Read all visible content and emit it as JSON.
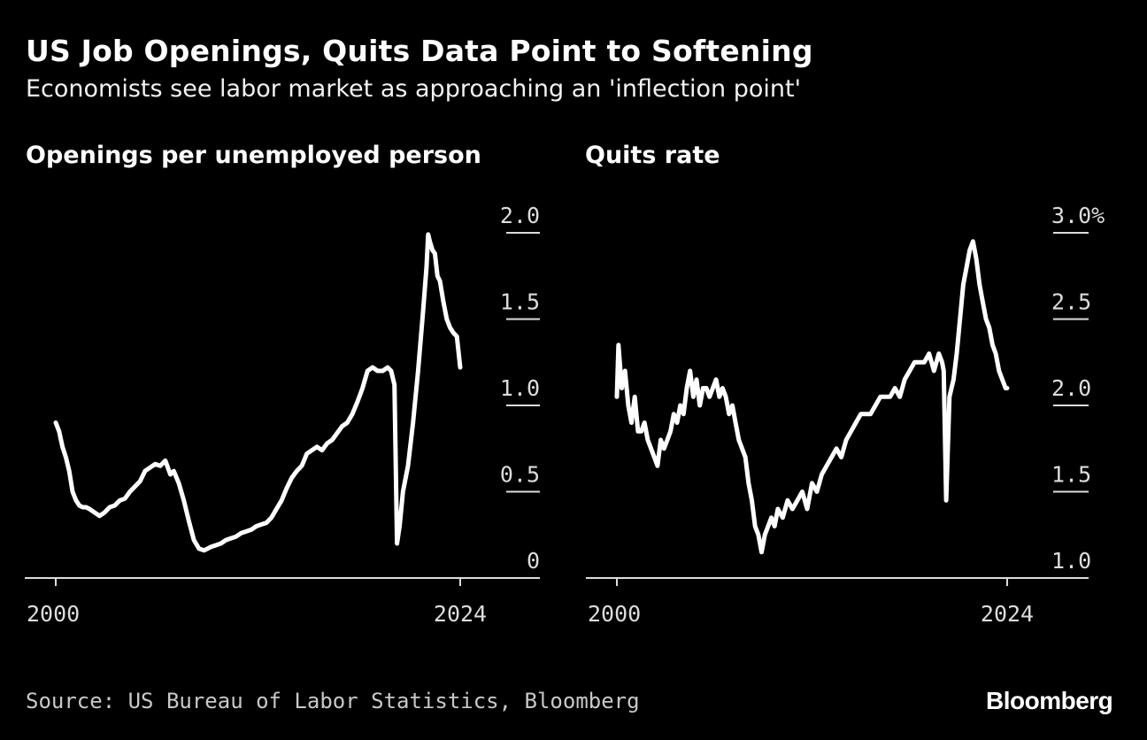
{
  "title": "US Job Openings, Quits Data Point to Softening",
  "subtitle": "Economists see labor market as approaching an 'inflection point'",
  "source": "Source: US Bureau of Labor Statistics, Bloomberg",
  "brand": "Bloomberg",
  "chart_data": [
    {
      "type": "line",
      "title": "Openings per unemployed person",
      "xlabel": "",
      "ylabel": "",
      "xlim": [
        2000,
        2024
      ],
      "ylim": [
        0,
        2.0
      ],
      "x_ticks": [
        "2000",
        "2024"
      ],
      "y_ticks": [
        "0",
        "0.5",
        "1.0",
        "1.5",
        "2.0"
      ],
      "y_tick_values": [
        0,
        0.5,
        1.0,
        1.5,
        2.0
      ],
      "grid": false,
      "color": "#ffffff",
      "series": [
        {
          "x": [
            2000.0,
            2000.2,
            2000.4,
            2000.6,
            2000.8,
            2001.0,
            2001.2,
            2001.4,
            2001.6,
            2001.8,
            2002.0,
            2002.3,
            2002.6,
            2002.9,
            2003.2,
            2003.5,
            2003.8,
            2004.1,
            2004.4,
            2004.7,
            2005.0,
            2005.3,
            2005.6,
            2005.9,
            2006.2,
            2006.5,
            2006.8,
            2007.0,
            2007.3,
            2007.6,
            2007.9,
            2008.2,
            2008.5,
            2008.8,
            2009.0,
            2009.2,
            2009.5,
            2009.8,
            2010.1,
            2010.4,
            2010.7,
            2011.0,
            2011.3,
            2011.6,
            2011.9,
            2012.2,
            2012.5,
            2012.8,
            2013.1,
            2013.4,
            2013.7,
            2014.0,
            2014.3,
            2014.6,
            2014.9,
            2015.2,
            2015.5,
            2015.8,
            2016.1,
            2016.4,
            2016.7,
            2017.0,
            2017.3,
            2017.6,
            2017.9,
            2018.2,
            2018.5,
            2018.8,
            2019.1,
            2019.4,
            2019.7,
            2019.9,
            2020.1,
            2020.25,
            2020.4,
            2020.6,
            2020.9,
            2021.2,
            2021.5,
            2021.8,
            2022.0,
            2022.1,
            2022.2,
            2022.35,
            2022.5,
            2022.65,
            2022.8,
            2023.0,
            2023.2,
            2023.4,
            2023.6,
            2023.8,
            2024.0
          ],
          "y": [
            0.9,
            0.85,
            0.76,
            0.7,
            0.62,
            0.5,
            0.45,
            0.42,
            0.41,
            0.41,
            0.4,
            0.38,
            0.36,
            0.38,
            0.41,
            0.42,
            0.45,
            0.46,
            0.5,
            0.53,
            0.56,
            0.62,
            0.64,
            0.66,
            0.65,
            0.68,
            0.6,
            0.62,
            0.55,
            0.45,
            0.33,
            0.22,
            0.17,
            0.16,
            0.17,
            0.18,
            0.19,
            0.2,
            0.22,
            0.23,
            0.24,
            0.26,
            0.27,
            0.28,
            0.3,
            0.31,
            0.32,
            0.35,
            0.4,
            0.45,
            0.52,
            0.58,
            0.62,
            0.65,
            0.72,
            0.74,
            0.76,
            0.74,
            0.78,
            0.8,
            0.84,
            0.88,
            0.9,
            0.95,
            1.02,
            1.1,
            1.2,
            1.22,
            1.2,
            1.2,
            1.22,
            1.2,
            1.12,
            0.2,
            0.3,
            0.5,
            0.65,
            0.9,
            1.2,
            1.55,
            1.8,
            1.99,
            1.95,
            1.9,
            1.88,
            1.75,
            1.72,
            1.6,
            1.5,
            1.45,
            1.42,
            1.4,
            1.22
          ]
        }
      ]
    },
    {
      "type": "line",
      "title": "Quits rate",
      "xlabel": "",
      "ylabel": "",
      "xlim": [
        2000,
        2024
      ],
      "ylim": [
        1.0,
        3.0
      ],
      "x_ticks": [
        "2000",
        "2024"
      ],
      "y_ticks": [
        "1.0",
        "1.5",
        "2.0",
        "2.5",
        "3.0%"
      ],
      "y_tick_values": [
        1.0,
        1.5,
        2.0,
        2.5,
        3.0
      ],
      "grid": false,
      "color": "#ffffff",
      "series": [
        {
          "x": [
            2000.0,
            2000.1,
            2000.3,
            2000.5,
            2000.7,
            2000.9,
            2001.1,
            2001.3,
            2001.5,
            2001.7,
            2001.9,
            2002.1,
            2002.3,
            2002.5,
            2002.7,
            2002.9,
            2003.1,
            2003.3,
            2003.5,
            2003.7,
            2003.9,
            2004.1,
            2004.3,
            2004.5,
            2004.7,
            2004.9,
            2005.1,
            2005.3,
            2005.5,
            2005.7,
            2005.9,
            2006.1,
            2006.3,
            2006.5,
            2006.7,
            2006.9,
            2007.1,
            2007.3,
            2007.5,
            2007.7,
            2007.9,
            2008.1,
            2008.3,
            2008.5,
            2008.7,
            2008.9,
            2009.1,
            2009.3,
            2009.5,
            2009.7,
            2009.9,
            2010.2,
            2010.5,
            2010.8,
            2011.1,
            2011.4,
            2011.7,
            2012.0,
            2012.3,
            2012.6,
            2012.9,
            2013.2,
            2013.5,
            2013.8,
            2014.1,
            2014.4,
            2014.7,
            2015.0,
            2015.3,
            2015.6,
            2015.9,
            2016.2,
            2016.5,
            2016.8,
            2017.1,
            2017.4,
            2017.7,
            2018.0,
            2018.3,
            2018.6,
            2018.9,
            2019.2,
            2019.5,
            2019.8,
            2020.0,
            2020.1,
            2020.25,
            2020.45,
            2020.7,
            2020.9,
            2021.1,
            2021.3,
            2021.5,
            2021.7,
            2021.9,
            2022.1,
            2022.3,
            2022.5,
            2022.7,
            2022.9,
            2023.1,
            2023.3,
            2023.5,
            2023.7,
            2023.9,
            2024.0
          ],
          "y": [
            2.05,
            2.35,
            2.1,
            2.2,
            2.0,
            1.9,
            2.05,
            1.85,
            1.85,
            1.9,
            1.8,
            1.75,
            1.7,
            1.65,
            1.8,
            1.75,
            1.8,
            1.85,
            1.95,
            1.9,
            2.0,
            1.95,
            2.1,
            2.2,
            2.05,
            2.15,
            2.0,
            2.1,
            2.1,
            2.05,
            2.1,
            2.15,
            2.05,
            2.1,
            2.05,
            1.95,
            2.0,
            1.9,
            1.8,
            1.75,
            1.7,
            1.55,
            1.45,
            1.3,
            1.25,
            1.15,
            1.25,
            1.3,
            1.35,
            1.3,
            1.4,
            1.35,
            1.45,
            1.4,
            1.45,
            1.5,
            1.4,
            1.55,
            1.5,
            1.6,
            1.65,
            1.7,
            1.75,
            1.7,
            1.8,
            1.85,
            1.9,
            1.95,
            1.95,
            1.95,
            2.0,
            2.05,
            2.05,
            2.05,
            2.1,
            2.05,
            2.15,
            2.2,
            2.25,
            2.25,
            2.25,
            2.3,
            2.2,
            2.3,
            2.25,
            2.2,
            1.45,
            2.05,
            2.15,
            2.3,
            2.5,
            2.7,
            2.8,
            2.9,
            2.95,
            2.85,
            2.7,
            2.6,
            2.5,
            2.45,
            2.35,
            2.3,
            2.2,
            2.15,
            2.1,
            2.1
          ]
        }
      ]
    }
  ]
}
